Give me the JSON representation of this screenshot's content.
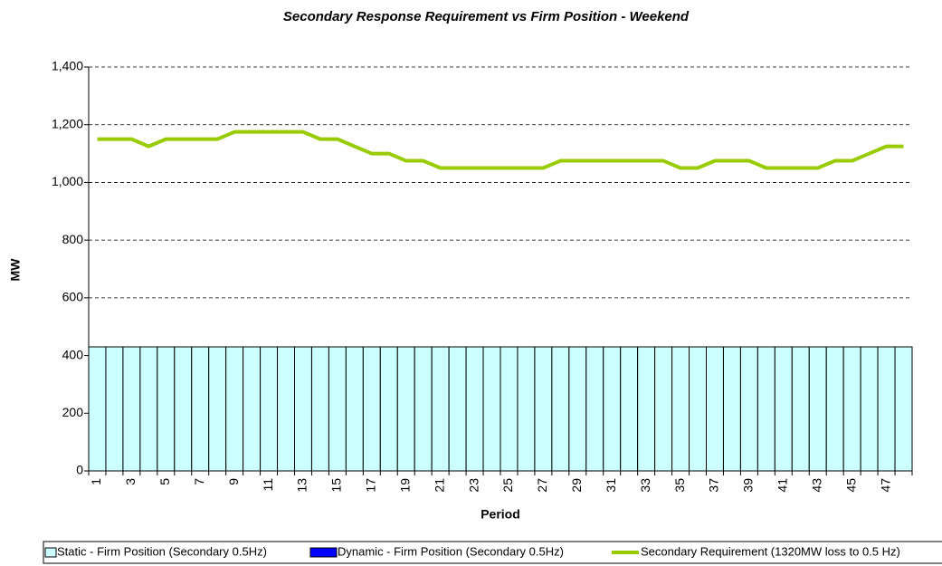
{
  "chart_data": {
    "type": "bar",
    "title": "Secondary Response Requirement vs Firm Position - Weekend",
    "x_label": "Period",
    "y_label": "MW",
    "categories": [
      "1",
      null,
      "3",
      null,
      "5",
      null,
      "7",
      null,
      "9",
      null,
      "11",
      null,
      "13",
      null,
      "15",
      null,
      "17",
      null,
      "19",
      null,
      "21",
      null,
      "23",
      null,
      "25",
      null,
      "27",
      null,
      "29",
      null,
      "31",
      null,
      "33",
      null,
      "35",
      null,
      "37",
      null,
      "39",
      null,
      "41",
      null,
      "43",
      null,
      "45",
      null,
      "47",
      null
    ],
    "series": [
      {
        "name": "Static - Firm Position (Secondary 0.5Hz)",
        "type": "bar",
        "color": "#ccffff",
        "values": [
          430,
          430,
          430,
          430,
          430,
          430,
          430,
          430,
          430,
          430,
          430,
          430,
          430,
          430,
          430,
          430,
          430,
          430,
          430,
          430,
          430,
          430,
          430,
          430,
          430,
          430,
          430,
          430,
          430,
          430,
          430,
          430,
          430,
          430,
          430,
          430,
          430,
          430,
          430,
          430,
          430,
          430,
          430,
          430,
          430,
          430,
          430,
          430
        ]
      },
      {
        "name": "Dynamic - Firm Position (Secondary 0.5Hz)",
        "type": "bar",
        "color": "#0000ff",
        "values": [
          0,
          0,
          0,
          0,
          0,
          0,
          0,
          0,
          0,
          0,
          0,
          0,
          0,
          0,
          0,
          0,
          0,
          0,
          0,
          0,
          0,
          0,
          0,
          0,
          0,
          0,
          0,
          0,
          0,
          0,
          0,
          0,
          0,
          0,
          0,
          0,
          0,
          0,
          0,
          0,
          0,
          0,
          0,
          0,
          0,
          0,
          0,
          0
        ]
      },
      {
        "name": "Secondary Requirement (1320MW loss to 0.5 Hz)",
        "type": "line",
        "color": "#99cc00",
        "values": [
          1150,
          1150,
          1150,
          1125,
          1150,
          1150,
          1150,
          1150,
          1175,
          1175,
          1175,
          1175,
          1175,
          1150,
          1150,
          1125,
          1100,
          1100,
          1075,
          1075,
          1050,
          1050,
          1050,
          1050,
          1050,
          1050,
          1050,
          1075,
          1075,
          1075,
          1075,
          1075,
          1075,
          1075,
          1050,
          1050,
          1075,
          1075,
          1075,
          1050,
          1050,
          1050,
          1050,
          1075,
          1075,
          1100,
          1125,
          1125
        ]
      }
    ],
    "ylim": [
      0,
      1400
    ],
    "yticks": [
      0,
      200,
      400,
      600,
      800,
      {
        "value": 1000,
        "label": "1,000"
      },
      {
        "value": 1200,
        "label": "1,200"
      },
      {
        "value": 1400,
        "label": "1,400"
      }
    ],
    "grid": true,
    "legend": "bottom"
  }
}
